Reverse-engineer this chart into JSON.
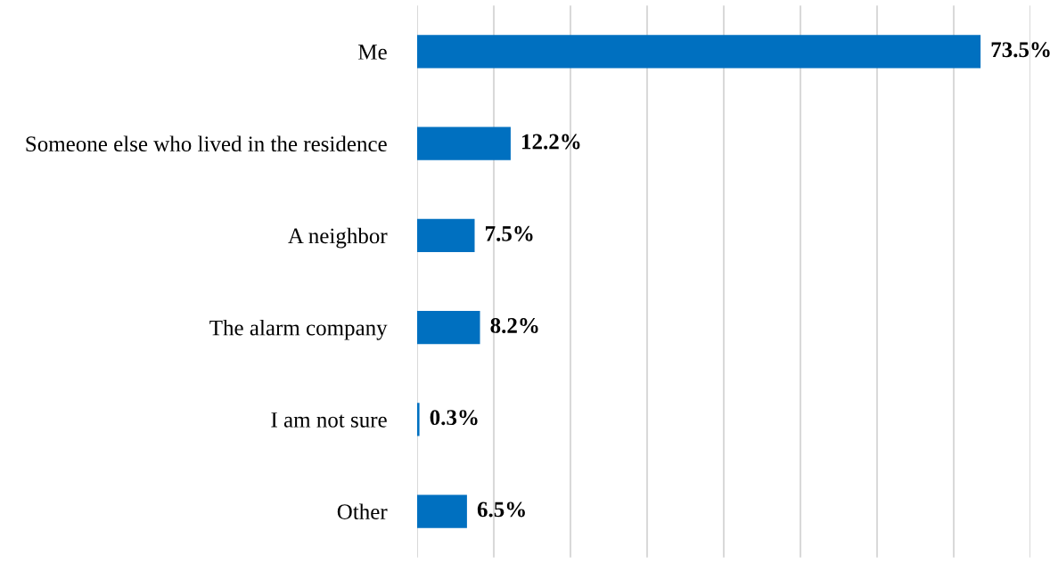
{
  "chart_data": {
    "type": "bar",
    "orientation": "horizontal",
    "categories": [
      "Me",
      "Someone else who lived in the residence",
      "A neighbor",
      "The alarm company",
      "I am not sure",
      "Other"
    ],
    "values": [
      73.5,
      12.2,
      7.5,
      8.2,
      0.3,
      6.5
    ],
    "value_labels": [
      "73.5%",
      "12.2%",
      "7.5%",
      "8.2%",
      "0.3%",
      "6.5%"
    ],
    "color": "#0070c0",
    "xlim": [
      0,
      80
    ],
    "xticks": [
      {
        "value": 0,
        "label": null
      },
      {
        "value": 10,
        "label": null
      },
      {
        "value": 20,
        "label": null
      },
      {
        "value": 30,
        "label": null
      },
      {
        "value": 40,
        "label": null
      },
      {
        "value": 50,
        "label": null
      },
      {
        "value": 60,
        "label": null
      },
      {
        "value": 70,
        "label": null
      },
      {
        "value": 80,
        "label": null
      }
    ],
    "grid": "x",
    "tick_labels": "y",
    "legend": false
  }
}
